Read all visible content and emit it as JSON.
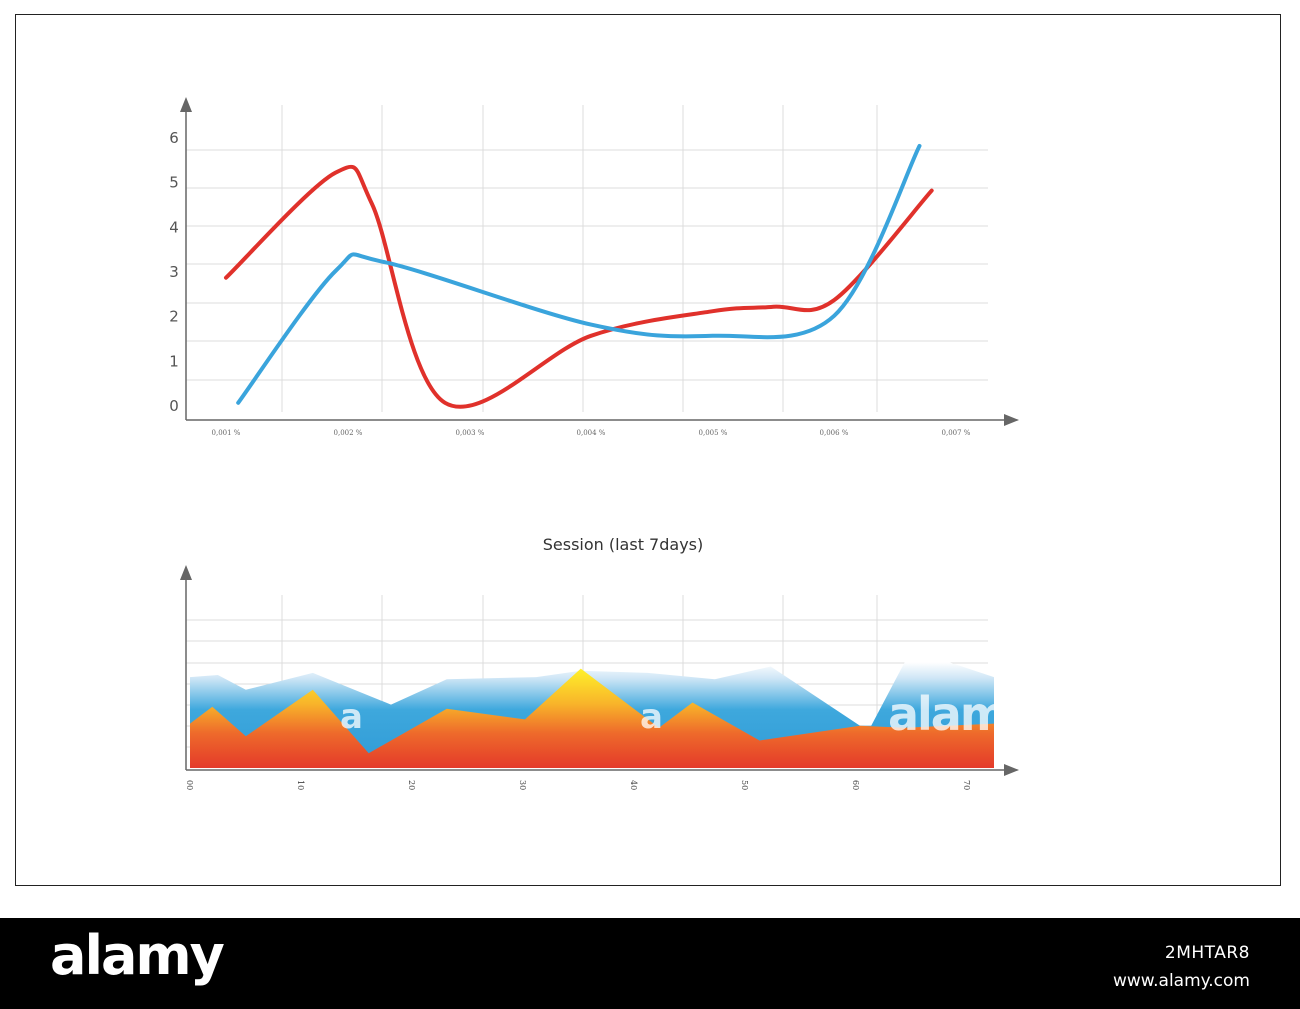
{
  "chart_data": [
    {
      "type": "line",
      "x": [
        "0,001 %",
        "0,002 %",
        "0,003 %",
        "0,004 %",
        "0,005 %",
        "0,006 %",
        "0,007 %"
      ],
      "y_ticks": [
        "0",
        "1",
        "2",
        "3",
        "4",
        "5",
        "6"
      ],
      "ylim": [
        0,
        6
      ],
      "series": [
        {
          "color": "#e0312b",
          "points": [
            [
              0.001,
              2.85
            ],
            [
              0.0019,
              5.2
            ],
            [
              0.0022,
              4.5
            ],
            [
              0.0028,
              0.05
            ],
            [
              0.004,
              1.55
            ],
            [
              0.005,
              2.1
            ],
            [
              0.0055,
              2.2
            ],
            [
              0.006,
              2.35
            ],
            [
              0.0068,
              4.8
            ]
          ]
        },
        {
          "color": "#3aa4dc",
          "points": [
            [
              0.0011,
              0.05
            ],
            [
              0.0019,
              3.0
            ],
            [
              0.0023,
              3.2
            ],
            [
              0.004,
              1.8
            ],
            [
              0.005,
              1.55
            ],
            [
              0.006,
              2.0
            ],
            [
              0.0067,
              5.8
            ]
          ]
        }
      ],
      "grid": true
    },
    {
      "type": "area",
      "title": "Session (last 7days)",
      "x_ticks": [
        "00",
        "10",
        "20",
        "30",
        "40",
        "50",
        "60",
        "70"
      ],
      "xlim": [
        0,
        72
      ],
      "ylim": [
        0,
        7
      ],
      "series": [
        {
          "color": "#3aa4dc",
          "points": [
            [
              0,
              4.3
            ],
            [
              2.5,
              4.4
            ],
            [
              5,
              3.7
            ],
            [
              11,
              4.5
            ],
            [
              18,
              3.0
            ],
            [
              23,
              4.2
            ],
            [
              31,
              4.3
            ],
            [
              35,
              4.6
            ],
            [
              41,
              4.5
            ],
            [
              47,
              4.2
            ],
            [
              52,
              4.8
            ],
            [
              60,
              2.0
            ],
            [
              61,
              2.0
            ],
            [
              64,
              5.0
            ],
            [
              68,
              5.0
            ],
            [
              72,
              4.3
            ]
          ]
        },
        {
          "color": "#e94b2a",
          "points": [
            [
              0,
              2.1
            ],
            [
              2,
              2.9
            ],
            [
              5,
              1.5
            ],
            [
              11,
              3.7
            ],
            [
              16,
              0.7
            ],
            [
              23,
              2.8
            ],
            [
              30,
              2.3
            ],
            [
              35,
              4.7
            ],
            [
              42,
              1.9
            ],
            [
              45,
              3.1
            ],
            [
              51,
              1.3
            ],
            [
              60,
              2.0
            ],
            [
              64,
              1.9
            ],
            [
              72,
              2.1
            ]
          ]
        }
      ]
    }
  ],
  "watermark": {
    "logo_text": "alamy",
    "small_mark": "a"
  },
  "footer": {
    "logo": "alamy",
    "image_id": "2MHTAR8",
    "url": "www.alamy.com"
  }
}
